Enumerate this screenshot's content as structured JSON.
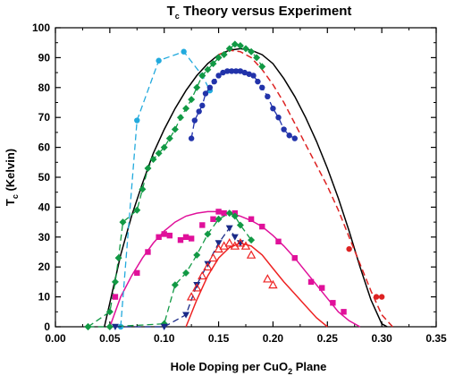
{
  "chart_data": {
    "type": "scatter",
    "title": {
      "main": "T",
      "sub": "c",
      "rest": " Theory versus Experiment"
    },
    "xlabel": {
      "pre": "Hole Doping per CuO",
      "sub": "2",
      "post": " Plane"
    },
    "ylabel": {
      "main": "T",
      "sub": "c",
      "post": " (Kelvin)"
    },
    "xlim": [
      0,
      0.35
    ],
    "ylim": [
      0,
      100
    ],
    "x_ticks": [
      0.0,
      0.05,
      0.1,
      0.15,
      0.2,
      0.25,
      0.3,
      0.35
    ],
    "x_tick_labels": [
      "0.00",
      "0.05",
      "0.10",
      "0.15",
      "0.20",
      "0.25",
      "0.30",
      "0.35"
    ],
    "y_ticks": [
      0,
      10,
      20,
      30,
      40,
      50,
      60,
      70,
      80,
      90,
      100
    ],
    "y_tick_labels": [
      "0",
      "10",
      "20",
      "30",
      "40",
      "50",
      "60",
      "70",
      "80",
      "90",
      "100"
    ],
    "series": [
      {
        "kind": "theory-curve",
        "color": "#000000",
        "style": "solid",
        "marker": "none",
        "x": [
          0.045,
          0.05,
          0.06,
          0.07,
          0.08,
          0.09,
          0.1,
          0.11,
          0.12,
          0.13,
          0.14,
          0.15,
          0.16,
          0.17,
          0.18,
          0.19,
          0.2,
          0.21,
          0.22,
          0.23,
          0.24,
          0.25,
          0.26,
          0.27,
          0.28,
          0.29,
          0.3,
          0.305
        ],
        "y": [
          0,
          8,
          24,
          37,
          48,
          58,
          66,
          73,
          79,
          84,
          88,
          91,
          92.5,
          93,
          92.5,
          91,
          88,
          83,
          77,
          70,
          62,
          53,
          43,
          32,
          20,
          9,
          1,
          0
        ]
      },
      {
        "kind": "theory-curve",
        "color": "#dd2222",
        "style": "dashed",
        "marker": "none",
        "x": [
          0.15,
          0.16,
          0.17,
          0.18,
          0.19,
          0.2,
          0.21,
          0.22,
          0.23,
          0.24,
          0.25,
          0.26,
          0.27,
          0.28,
          0.29,
          0.3,
          0.31
        ],
        "y": [
          91,
          92.5,
          92,
          90,
          86,
          81,
          75,
          68,
          61,
          54,
          47,
          39,
          30,
          21,
          12,
          4,
          0
        ]
      },
      {
        "kind": "theory-curve",
        "color": "#e0109a",
        "style": "solid",
        "marker": "none",
        "x": [
          0.05,
          0.06,
          0.07,
          0.08,
          0.09,
          0.1,
          0.11,
          0.12,
          0.13,
          0.14,
          0.15,
          0.16,
          0.17,
          0.18,
          0.19,
          0.2,
          0.21,
          0.22,
          0.23,
          0.24,
          0.25,
          0.26,
          0.27,
          0.28
        ],
        "y": [
          0,
          10,
          17,
          23,
          28,
          32,
          35,
          37,
          38,
          38.5,
          38.5,
          38,
          37,
          35.5,
          33.5,
          30.5,
          27,
          23,
          18.5,
          14,
          9.5,
          5,
          2,
          0
        ]
      },
      {
        "kind": "theory-curve",
        "color": "#ee2222",
        "style": "solid",
        "marker": "none",
        "x": [
          0.12,
          0.13,
          0.14,
          0.15,
          0.16,
          0.17,
          0.18,
          0.19,
          0.2,
          0.21,
          0.22,
          0.23,
          0.24,
          0.25
        ],
        "y": [
          0,
          9,
          17,
          23,
          26.5,
          28,
          27,
          24,
          19.5,
          15,
          11,
          7,
          3,
          0
        ]
      },
      {
        "kind": "data",
        "color": "#22aadd",
        "style": "dashed",
        "marker": "circle",
        "x": [
          0.06,
          0.075,
          0.095,
          0.118,
          0.135,
          0.142
        ],
        "y": [
          0,
          69,
          89,
          92,
          84,
          79
        ]
      },
      {
        "kind": "data",
        "color": "#119944",
        "style": "dashed",
        "marker": "diamond",
        "x": [
          0.03,
          0.05,
          0.055,
          0.058,
          0.062,
          0.075,
          0.08,
          0.085,
          0.09,
          0.095,
          0.1,
          0.105,
          0.11,
          0.115,
          0.12,
          0.125,
          0.13,
          0.135,
          0.14,
          0.145,
          0.15,
          0.155,
          0.16,
          0.165,
          0.17,
          0.175,
          0.18,
          0.185,
          0.19
        ],
        "y": [
          0,
          5,
          15,
          23,
          35,
          39,
          46,
          53,
          56,
          58,
          60,
          63,
          66,
          70,
          73,
          76,
          80,
          84,
          86,
          88,
          90,
          91,
          93,
          94.5,
          94,
          93,
          92,
          90,
          87
        ]
      },
      {
        "kind": "data",
        "color": "#2233aa",
        "style": "dashed",
        "marker": "circle",
        "x": [
          0.125,
          0.128,
          0.132,
          0.135,
          0.138,
          0.142,
          0.146,
          0.15,
          0.154,
          0.158,
          0.162,
          0.166,
          0.17,
          0.174,
          0.178,
          0.182,
          0.186,
          0.19,
          0.195,
          0.2,
          0.205,
          0.21,
          0.215,
          0.22
        ],
        "y": [
          63,
          69,
          72,
          74,
          78,
          80,
          82,
          84,
          85,
          85.5,
          85.5,
          85.5,
          85.5,
          85,
          84.5,
          84,
          82,
          80,
          77,
          73,
          70,
          66,
          64,
          63
        ]
      },
      {
        "kind": "data",
        "color": "#e0109a",
        "style": "none",
        "marker": "square",
        "x": [
          0.055,
          0.075,
          0.085,
          0.095,
          0.1,
          0.105,
          0.115,
          0.12,
          0.125,
          0.135,
          0.145,
          0.15,
          0.155,
          0.165,
          0.18,
          0.19,
          0.205,
          0.22,
          0.235,
          0.245,
          0.255,
          0.265
        ],
        "y": [
          10,
          18,
          25,
          30,
          31,
          30.5,
          29,
          30,
          29.5,
          34,
          36,
          38.5,
          38,
          38,
          36,
          33.5,
          28.5,
          23,
          15,
          13,
          8,
          5
        ]
      },
      {
        "kind": "data",
        "color": "#119944",
        "style": "dashed",
        "marker": "diamond",
        "x": [
          0.03,
          0.05,
          0.1,
          0.11,
          0.12,
          0.13,
          0.14,
          0.15,
          0.16,
          0.165,
          0.17,
          0.18
        ],
        "y": [
          0,
          0,
          1,
          14,
          18,
          24,
          31,
          36,
          38,
          37,
          34,
          29
        ]
      },
      {
        "kind": "data",
        "color": "#1a2a88",
        "style": "dashed",
        "marker": "triangle-down",
        "x": [
          0.055,
          0.1,
          0.12,
          0.13,
          0.14,
          0.15,
          0.16,
          0.165,
          0.17
        ],
        "y": [
          0,
          0,
          4,
          14,
          21,
          28,
          33,
          30,
          28
        ]
      },
      {
        "kind": "data",
        "color": "#ee2222",
        "style": "none",
        "marker": "triangle-up-open",
        "x": [
          0.125,
          0.13,
          0.135,
          0.14,
          0.145,
          0.15,
          0.155,
          0.16,
          0.165,
          0.17,
          0.175,
          0.18,
          0.195,
          0.2
        ],
        "y": [
          10,
          13,
          17,
          20,
          23,
          26,
          27,
          28,
          27,
          28,
          27,
          24,
          16,
          14
        ]
      },
      {
        "kind": "data",
        "color": "#dd2222",
        "style": "none",
        "marker": "circle",
        "x": [
          0.27,
          0.295,
          0.3
        ],
        "y": [
          26,
          10,
          10
        ]
      }
    ]
  }
}
